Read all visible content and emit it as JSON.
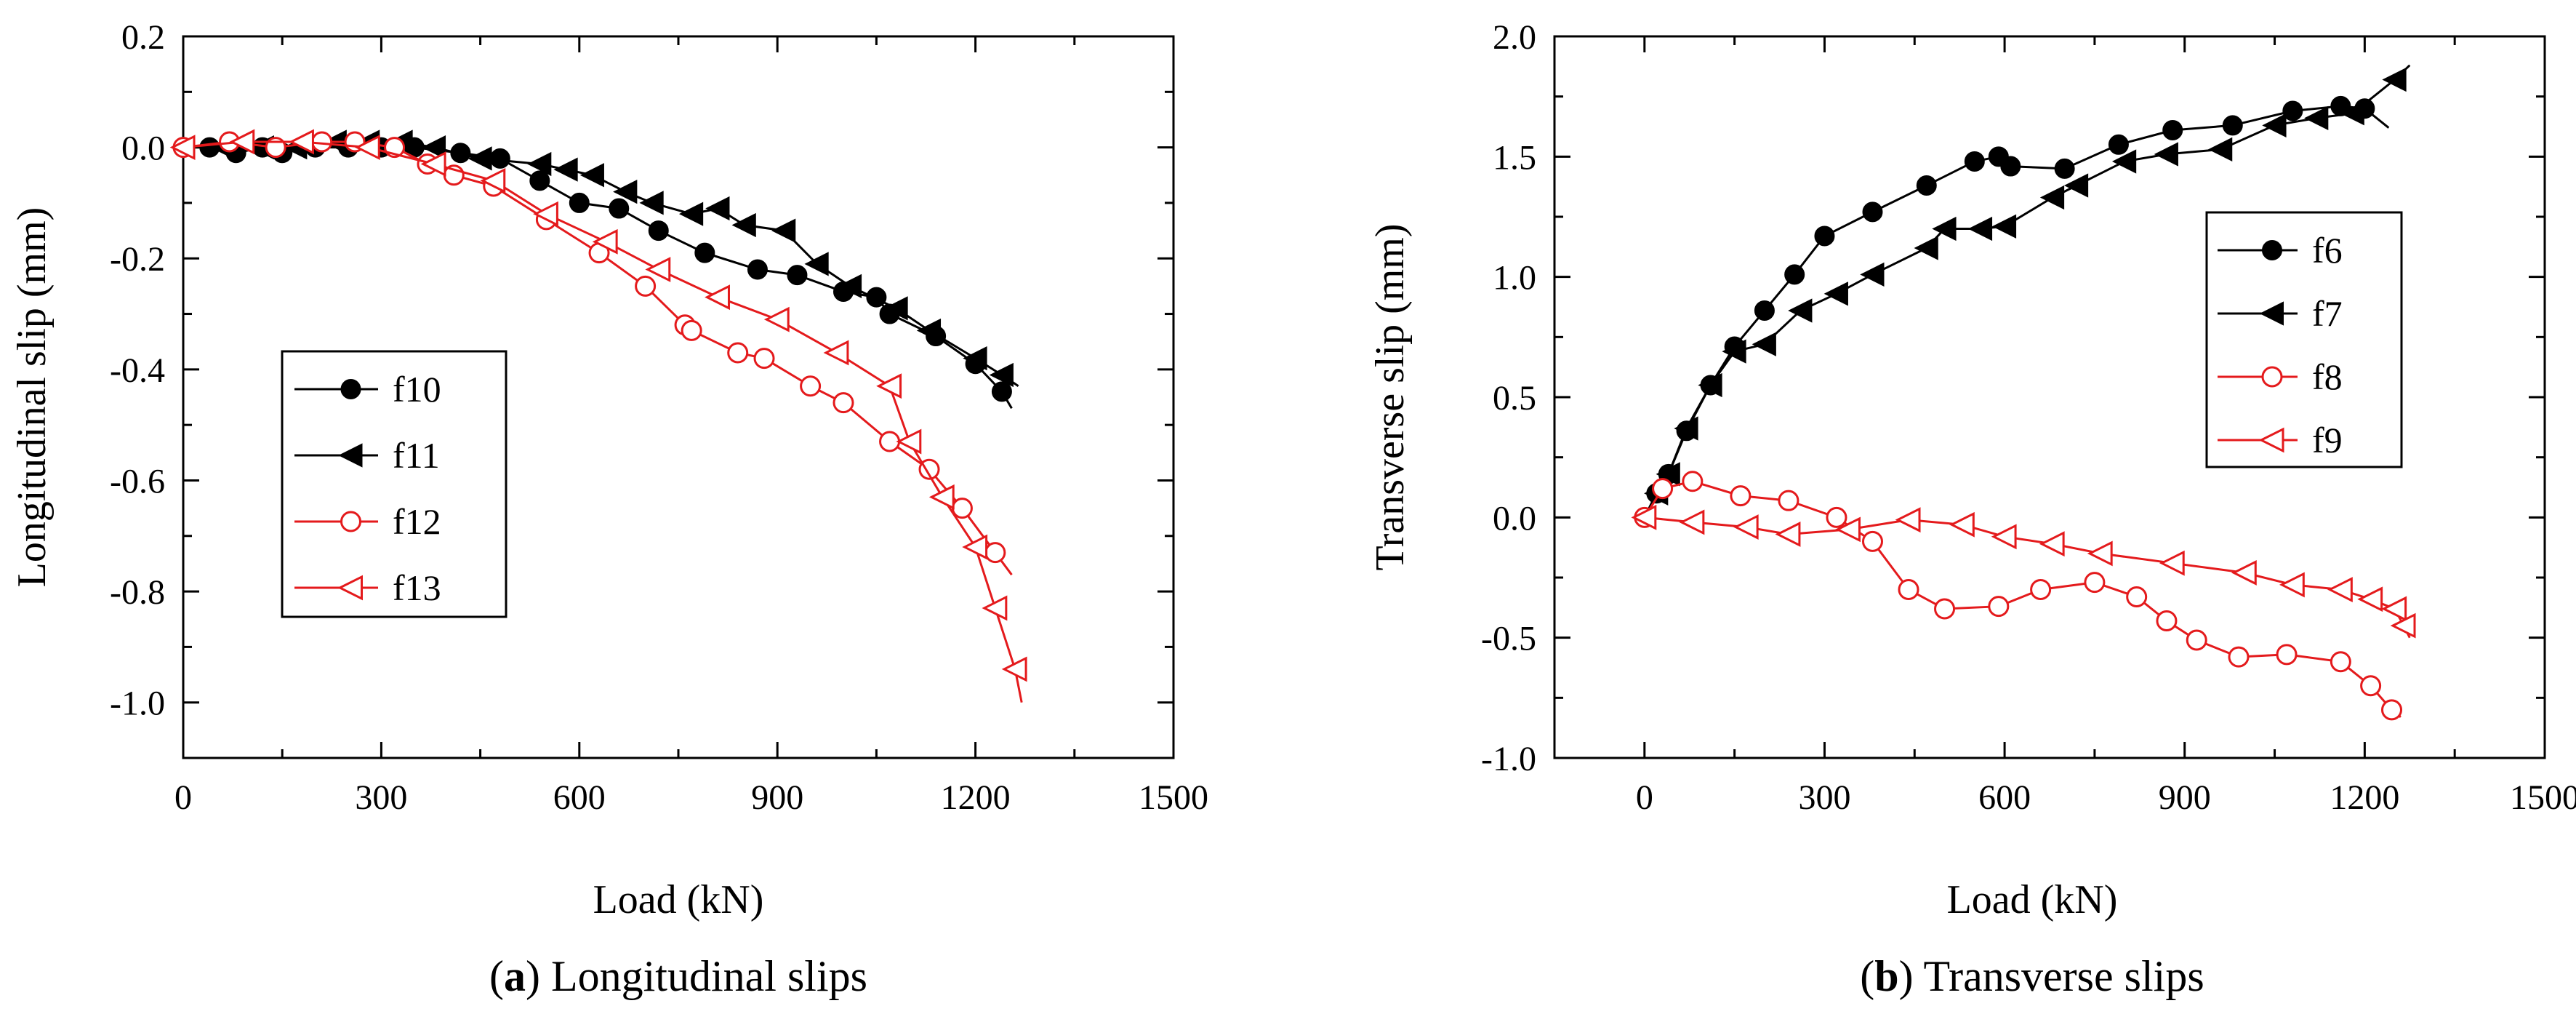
{
  "chart_data": [
    {
      "type": "line",
      "caption_letter": "a",
      "caption_text": ") Longitudinal slips",
      "caption_open": "(",
      "xlabel": "Load (kN)",
      "ylabel": "Longitudinal slip (mm)",
      "xlim": [
        0,
        1500
      ],
      "ylim": [
        -1.1,
        0.2
      ],
      "xticks": [
        0,
        300,
        600,
        900,
        1200,
        1500
      ],
      "xtick_labels": [
        "0",
        "300",
        "600",
        "900",
        "1200",
        "1500"
      ],
      "yticks": [
        0.2,
        0.0,
        -0.2,
        -0.4,
        -0.6,
        -0.8,
        -1.0
      ],
      "ytick_labels": [
        "0.2",
        "0.0",
        "-0.2",
        "-0.4",
        "-0.6",
        "-0.8",
        "-1.0"
      ],
      "legend_position": "center-left",
      "series": [
        {
          "name": "f10",
          "color": "#000000",
          "marker": "circle",
          "filled": true,
          "points": [
            [
              0,
              0.0
            ],
            [
              40,
              0.0
            ],
            [
              80,
              -0.01
            ],
            [
              120,
              0.0
            ],
            [
              150,
              -0.01
            ],
            [
              200,
              0.0
            ],
            [
              250,
              0.0
            ],
            [
              300,
              0.0
            ],
            [
              350,
              0.0
            ],
            [
              420,
              -0.01
            ],
            [
              480,
              -0.02
            ],
            [
              540,
              -0.06
            ],
            [
              600,
              -0.1
            ],
            [
              660,
              -0.11
            ],
            [
              720,
              -0.15
            ],
            [
              790,
              -0.19
            ],
            [
              870,
              -0.22
            ],
            [
              930,
              -0.23
            ],
            [
              1000,
              -0.26
            ],
            [
              1050,
              -0.27
            ],
            [
              1070,
              -0.3
            ],
            [
              1140,
              -0.34
            ],
            [
              1200,
              -0.39
            ],
            [
              1240,
              -0.44
            ],
            [
              1255,
              -0.47
            ]
          ]
        },
        {
          "name": "f11",
          "color": "#000000",
          "marker": "triangle-left",
          "filled": true,
          "points": [
            [
              0,
              0.0
            ],
            [
              60,
              0.0
            ],
            [
              120,
              0.0
            ],
            [
              170,
              0.0
            ],
            [
              230,
              0.01
            ],
            [
              280,
              0.01
            ],
            [
              330,
              0.01
            ],
            [
              380,
              0.0
            ],
            [
              450,
              -0.02
            ],
            [
              540,
              -0.03
            ],
            [
              580,
              -0.04
            ],
            [
              620,
              -0.05
            ],
            [
              670,
              -0.08
            ],
            [
              710,
              -0.1
            ],
            [
              770,
              -0.12
            ],
            [
              810,
              -0.11
            ],
            [
              850,
              -0.14
            ],
            [
              910,
              -0.15
            ],
            [
              960,
              -0.21
            ],
            [
              1010,
              -0.25
            ],
            [
              1080,
              -0.29
            ],
            [
              1130,
              -0.33
            ],
            [
              1200,
              -0.38
            ],
            [
              1240,
              -0.41
            ],
            [
              1265,
              -0.43
            ]
          ]
        },
        {
          "name": "f12",
          "color": "#e41a1c",
          "marker": "circle",
          "filled": false,
          "points": [
            [
              0,
              0.0
            ],
            [
              70,
              0.01
            ],
            [
              140,
              0.0
            ],
            [
              210,
              0.01
            ],
            [
              260,
              0.01
            ],
            [
              320,
              0.0
            ],
            [
              370,
              -0.03
            ],
            [
              410,
              -0.05
            ],
            [
              470,
              -0.07
            ],
            [
              550,
              -0.13
            ],
            [
              630,
              -0.19
            ],
            [
              700,
              -0.25
            ],
            [
              760,
              -0.32
            ],
            [
              770,
              -0.33
            ],
            [
              840,
              -0.37
            ],
            [
              880,
              -0.38
            ],
            [
              950,
              -0.43
            ],
            [
              1000,
              -0.46
            ],
            [
              1070,
              -0.53
            ],
            [
              1130,
              -0.58
            ],
            [
              1180,
              -0.65
            ],
            [
              1230,
              -0.73
            ],
            [
              1255,
              -0.77
            ]
          ]
        },
        {
          "name": "f13",
          "color": "#e41a1c",
          "marker": "triangle-left",
          "filled": false,
          "points": [
            [
              0,
              0.0
            ],
            [
              90,
              0.01
            ],
            [
              180,
              0.01
            ],
            [
              280,
              0.0
            ],
            [
              380,
              -0.03
            ],
            [
              470,
              -0.06
            ],
            [
              550,
              -0.12
            ],
            [
              640,
              -0.17
            ],
            [
              720,
              -0.22
            ],
            [
              810,
              -0.27
            ],
            [
              900,
              -0.31
            ],
            [
              990,
              -0.37
            ],
            [
              1070,
              -0.43
            ],
            [
              1100,
              -0.53
            ],
            [
              1150,
              -0.63
            ],
            [
              1200,
              -0.72
            ],
            [
              1230,
              -0.83
            ],
            [
              1260,
              -0.94
            ],
            [
              1270,
              -1.0
            ]
          ]
        }
      ]
    },
    {
      "type": "line",
      "caption_letter": "b",
      "caption_text": ") Transverse slips",
      "caption_open": "(",
      "xlabel": "Load (kN)",
      "ylabel": "Transverse slip (mm)",
      "xlim": [
        -150,
        1500
      ],
      "ylim": [
        -1.0,
        2.0
      ],
      "xticks": [
        0,
        300,
        600,
        900,
        1200,
        1500
      ],
      "xtick_labels": [
        "0",
        "300",
        "600",
        "900",
        "1200",
        "1500"
      ],
      "yticks": [
        2.0,
        1.5,
        1.0,
        0.5,
        0.0,
        -0.5,
        -1.0
      ],
      "ytick_labels": [
        "2.0",
        "1.5",
        "1.0",
        "0.5",
        "0.0",
        "-0.5",
        "-1.0"
      ],
      "legend_position": "right",
      "series": [
        {
          "name": "f6",
          "color": "#000000",
          "marker": "circle",
          "filled": true,
          "points": [
            [
              0,
              0.0
            ],
            [
              20,
              0.1
            ],
            [
              40,
              0.18
            ],
            [
              70,
              0.36
            ],
            [
              110,
              0.55
            ],
            [
              150,
              0.71
            ],
            [
              200,
              0.86
            ],
            [
              250,
              1.01
            ],
            [
              300,
              1.17
            ],
            [
              380,
              1.27
            ],
            [
              470,
              1.38
            ],
            [
              550,
              1.48
            ],
            [
              590,
              1.5
            ],
            [
              610,
              1.46
            ],
            [
              700,
              1.45
            ],
            [
              790,
              1.55
            ],
            [
              880,
              1.61
            ],
            [
              980,
              1.63
            ],
            [
              1080,
              1.69
            ],
            [
              1160,
              1.71
            ],
            [
              1200,
              1.7
            ],
            [
              1240,
              1.62
            ]
          ]
        },
        {
          "name": "f7",
          "color": "#000000",
          "marker": "triangle-left",
          "filled": true,
          "points": [
            [
              0,
              0.0
            ],
            [
              20,
              0.1
            ],
            [
              40,
              0.18
            ],
            [
              70,
              0.37
            ],
            [
              110,
              0.55
            ],
            [
              150,
              0.69
            ],
            [
              200,
              0.72
            ],
            [
              260,
              0.86
            ],
            [
              320,
              0.93
            ],
            [
              380,
              1.01
            ],
            [
              470,
              1.12
            ],
            [
              500,
              1.2
            ],
            [
              560,
              1.2
            ],
            [
              600,
              1.21
            ],
            [
              680,
              1.33
            ],
            [
              720,
              1.38
            ],
            [
              800,
              1.48
            ],
            [
              870,
              1.51
            ],
            [
              960,
              1.53
            ],
            [
              1050,
              1.63
            ],
            [
              1120,
              1.66
            ],
            [
              1180,
              1.68
            ],
            [
              1250,
              1.82
            ],
            [
              1275,
              1.88
            ]
          ]
        },
        {
          "name": "f8",
          "color": "#e41a1c",
          "marker": "circle",
          "filled": false,
          "points": [
            [
              0,
              0.0
            ],
            [
              30,
              0.12
            ],
            [
              80,
              0.15
            ],
            [
              160,
              0.09
            ],
            [
              240,
              0.07
            ],
            [
              320,
              0.0
            ],
            [
              380,
              -0.1
            ],
            [
              440,
              -0.3
            ],
            [
              500,
              -0.38
            ],
            [
              590,
              -0.37
            ],
            [
              660,
              -0.3
            ],
            [
              750,
              -0.27
            ],
            [
              820,
              -0.33
            ],
            [
              870,
              -0.43
            ],
            [
              920,
              -0.51
            ],
            [
              990,
              -0.58
            ],
            [
              1070,
              -0.57
            ],
            [
              1160,
              -0.6
            ],
            [
              1210,
              -0.7
            ],
            [
              1245,
              -0.8
            ],
            [
              1260,
              -0.83
            ]
          ]
        },
        {
          "name": "f9",
          "color": "#e41a1c",
          "marker": "triangle-left",
          "filled": false,
          "points": [
            [
              0,
              0.0
            ],
            [
              80,
              -0.02
            ],
            [
              170,
              -0.04
            ],
            [
              240,
              -0.07
            ],
            [
              340,
              -0.05
            ],
            [
              440,
              -0.01
            ],
            [
              530,
              -0.03
            ],
            [
              600,
              -0.08
            ],
            [
              680,
              -0.11
            ],
            [
              760,
              -0.15
            ],
            [
              880,
              -0.19
            ],
            [
              1000,
              -0.23
            ],
            [
              1080,
              -0.28
            ],
            [
              1160,
              -0.3
            ],
            [
              1210,
              -0.34
            ],
            [
              1250,
              -0.38
            ],
            [
              1265,
              -0.45
            ],
            [
              1275,
              -0.5
            ]
          ]
        }
      ]
    }
  ]
}
